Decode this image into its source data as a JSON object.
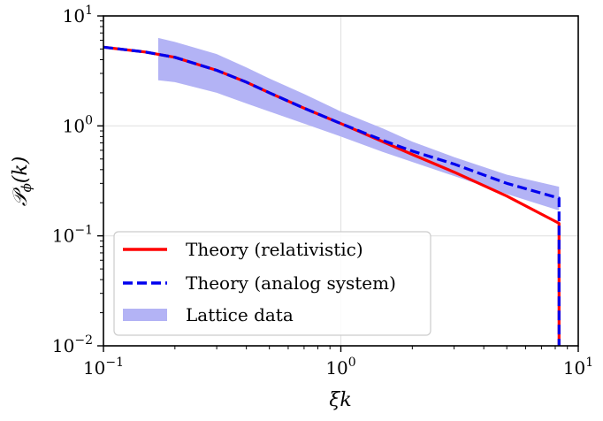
{
  "chart_data": {
    "type": "line",
    "xscale": "log",
    "yscale": "log",
    "xlabel": "ξk",
    "ylabel": "P_φ(k)",
    "xlim": [
      0.1,
      10
    ],
    "ylim": [
      0.01,
      10
    ],
    "x_ticks": [
      {
        "base": "10",
        "exp": "−1"
      },
      {
        "base": "10",
        "exp": "0"
      },
      {
        "base": "10",
        "exp": "1"
      }
    ],
    "y_ticks": [
      {
        "base": "10",
        "exp": "−2"
      },
      {
        "base": "10",
        "exp": "−1"
      },
      {
        "base": "10",
        "exp": "0"
      },
      {
        "base": "10",
        "exp": "1"
      }
    ],
    "x_tick_values": [
      0.1,
      1,
      10
    ],
    "y_tick_values": [
      0.01,
      0.1,
      1,
      10
    ],
    "grid": true,
    "legend_position": "lower-left",
    "series": [
      {
        "name": "Theory (relativistic)",
        "color": "#ff0000",
        "style": "solid",
        "x": [
          0.1,
          0.15,
          0.2,
          0.3,
          0.4,
          0.5,
          0.7,
          1.0,
          1.5,
          2.0,
          3.0,
          5.0,
          8.3,
          8.3
        ],
        "y": [
          5.2,
          4.7,
          4.2,
          3.2,
          2.5,
          2.0,
          1.45,
          1.05,
          0.72,
          0.55,
          0.38,
          0.23,
          0.13,
          0.01
        ]
      },
      {
        "name": "Theory (analog system)",
        "color": "#0000ee",
        "style": "dashed",
        "x": [
          0.1,
          0.15,
          0.2,
          0.3,
          0.4,
          0.5,
          0.7,
          1.0,
          1.5,
          2.0,
          3.0,
          5.0,
          8.3,
          8.3
        ],
        "y": [
          5.2,
          4.7,
          4.2,
          3.2,
          2.5,
          2.0,
          1.45,
          1.05,
          0.74,
          0.59,
          0.45,
          0.3,
          0.22,
          0.01
        ]
      }
    ],
    "band": {
      "name": "Lattice data",
      "color": "#b3b3f5",
      "x": [
        0.17,
        0.2,
        0.3,
        0.4,
        0.5,
        0.7,
        1.0,
        1.5,
        2.0,
        3.0,
        5.0,
        8.3
      ],
      "y_low": [
        2.6,
        2.5,
        2.0,
        1.6,
        1.35,
        1.05,
        0.8,
        0.58,
        0.47,
        0.35,
        0.24,
        0.17
      ],
      "y_high": [
        6.3,
        5.8,
        4.5,
        3.4,
        2.7,
        1.95,
        1.35,
        0.95,
        0.72,
        0.52,
        0.36,
        0.28
      ]
    }
  }
}
